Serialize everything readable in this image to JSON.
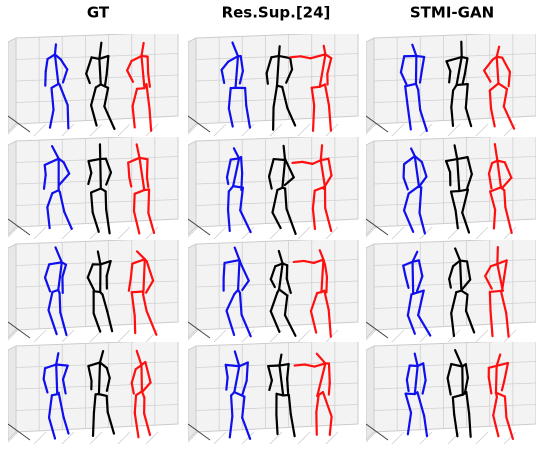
{
  "header": {
    "columns": [
      "GT",
      "Res.Sup.[24]",
      "STMI-GAN"
    ]
  }
}
